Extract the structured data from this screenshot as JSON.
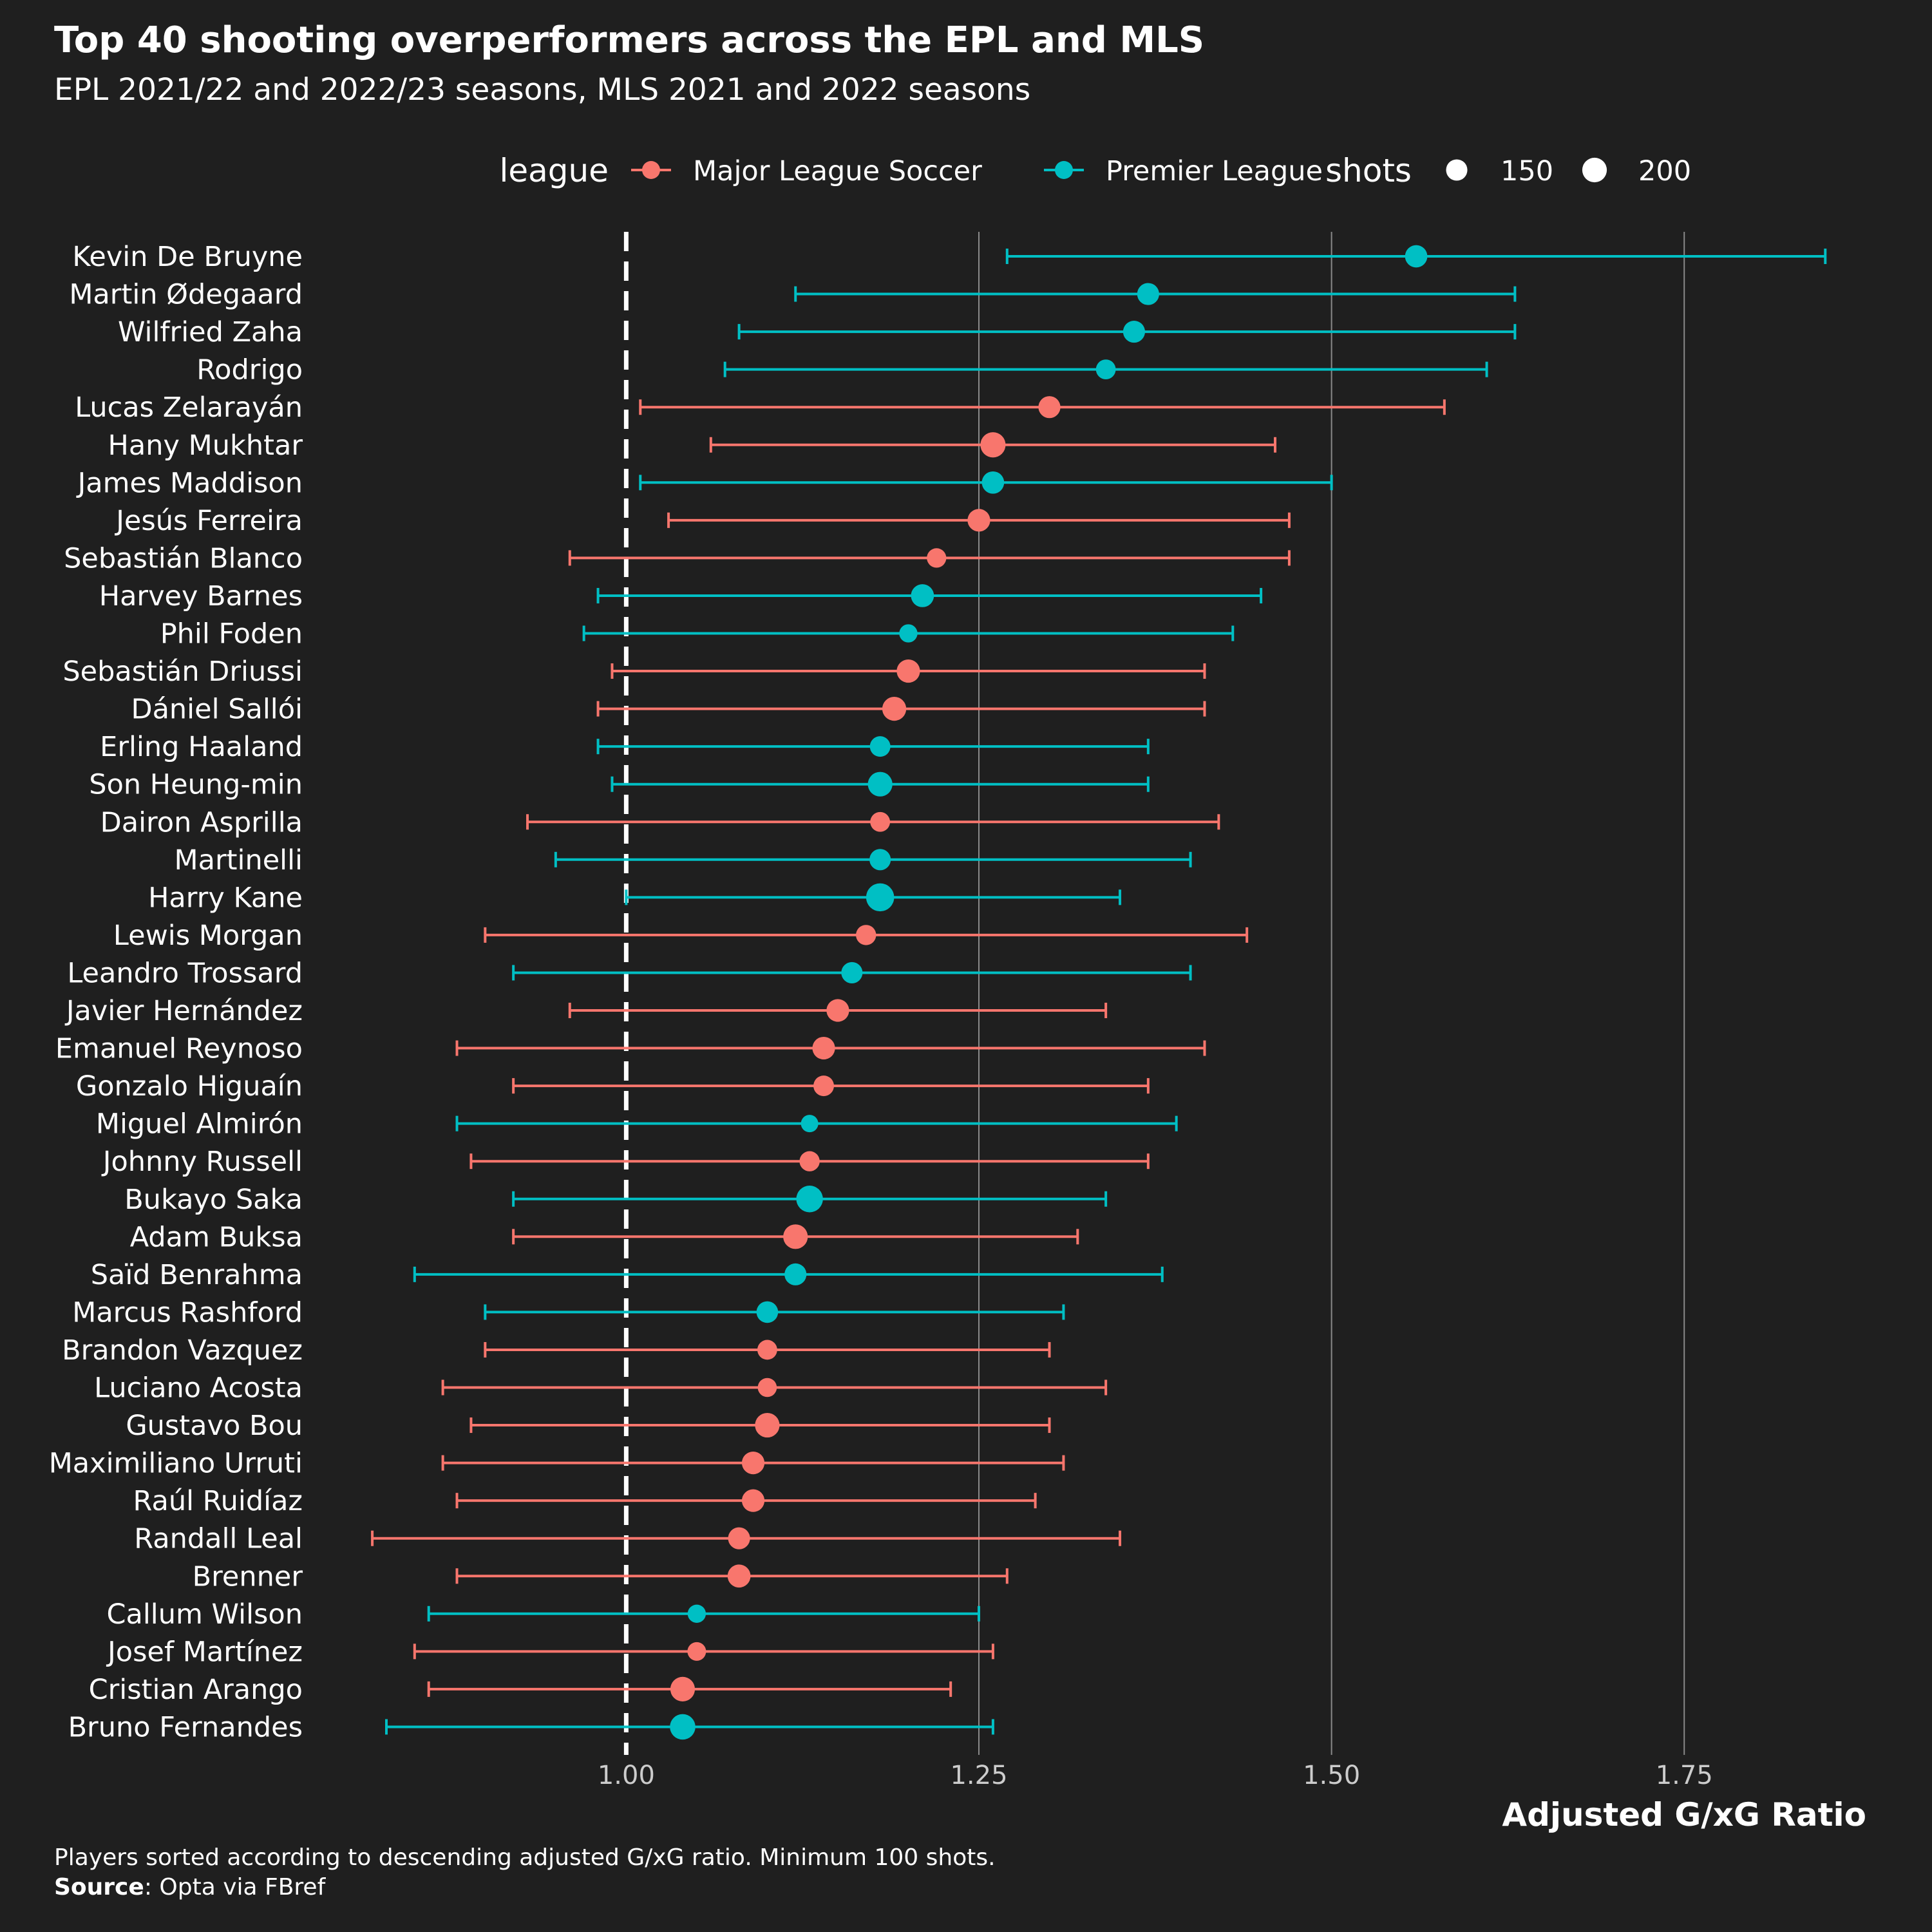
{
  "title": "Top 40 shooting overperformers across the EPL and MLS",
  "subtitle": "EPL 2021/22 and 2022/23 seasons, MLS 2021 and 2022 seasons",
  "caption": {
    "note": "Players sorted according to descending adjusted G/xG ratio. Minimum 100 shots.",
    "source_label": "Source",
    "source_text": ": Opta via FBref"
  },
  "colors": {
    "background": "#1f1f1f",
    "mls": "#f8766d",
    "epl": "#00bfc4",
    "grid": "#8a8a8a",
    "text": "#ffffff"
  },
  "chart_data": {
    "type": "dot-errorbar",
    "xlabel": "Adjusted G/xG Ratio",
    "xlim": [
      0.83,
      1.88
    ],
    "xticks": [
      1.0,
      1.25,
      1.5,
      1.75
    ],
    "xtick_labels": [
      "1.00",
      "1.25",
      "1.50",
      "1.75"
    ],
    "reference_line": 1.0,
    "legend": {
      "position": "top",
      "color_title": "league",
      "color_items": [
        {
          "key": "mls",
          "label": "Major League Soccer"
        },
        {
          "key": "epl",
          "label": "Premier League"
        }
      ],
      "size_title": "shots",
      "size_items": [
        150,
        200
      ]
    },
    "players": [
      {
        "name": "Kevin De Bruyne",
        "league": "epl",
        "value": 1.56,
        "low": 1.27,
        "high": 1.85,
        "shots": 165
      },
      {
        "name": "Martin Ødegaard",
        "league": "epl",
        "value": 1.37,
        "low": 1.12,
        "high": 1.63,
        "shots": 160
      },
      {
        "name": "Wilfried Zaha",
        "league": "epl",
        "value": 1.36,
        "low": 1.08,
        "high": 1.63,
        "shots": 160
      },
      {
        "name": "Rodrigo",
        "league": "epl",
        "value": 1.34,
        "low": 1.07,
        "high": 1.61,
        "shots": 130
      },
      {
        "name": "Lucas Zelarayán",
        "league": "mls",
        "value": 1.3,
        "low": 1.01,
        "high": 1.58,
        "shots": 160
      },
      {
        "name": "Hany Mukhtar",
        "league": "mls",
        "value": 1.26,
        "low": 1.06,
        "high": 1.46,
        "shots": 210
      },
      {
        "name": "James Maddison",
        "league": "epl",
        "value": 1.26,
        "low": 1.01,
        "high": 1.5,
        "shots": 165
      },
      {
        "name": "Jesús Ferreira",
        "league": "mls",
        "value": 1.25,
        "low": 1.03,
        "high": 1.47,
        "shots": 170
      },
      {
        "name": "Sebastián Blanco",
        "league": "mls",
        "value": 1.22,
        "low": 0.96,
        "high": 1.47,
        "shots": 125
      },
      {
        "name": "Harvey Barnes",
        "league": "epl",
        "value": 1.21,
        "low": 0.98,
        "high": 1.45,
        "shots": 175
      },
      {
        "name": "Phil Foden",
        "league": "epl",
        "value": 1.2,
        "low": 0.97,
        "high": 1.43,
        "shots": 110
      },
      {
        "name": "Sebastián Driussi",
        "league": "mls",
        "value": 1.2,
        "low": 0.99,
        "high": 1.41,
        "shots": 180
      },
      {
        "name": "Dániel Sallói",
        "league": "mls",
        "value": 1.19,
        "low": 0.98,
        "high": 1.41,
        "shots": 190
      },
      {
        "name": "Erling Haaland",
        "league": "epl",
        "value": 1.18,
        "low": 0.98,
        "high": 1.37,
        "shots": 140
      },
      {
        "name": "Son Heung-min",
        "league": "epl",
        "value": 1.18,
        "low": 0.99,
        "high": 1.37,
        "shots": 200
      },
      {
        "name": "Dairon Asprilla",
        "league": "mls",
        "value": 1.18,
        "low": 0.93,
        "high": 1.42,
        "shots": 130
      },
      {
        "name": "Martinelli",
        "league": "epl",
        "value": 1.18,
        "low": 0.95,
        "high": 1.4,
        "shots": 150
      },
      {
        "name": "Harry Kane",
        "league": "epl",
        "value": 1.18,
        "low": 1.0,
        "high": 1.35,
        "shots": 260
      },
      {
        "name": "Lewis Morgan",
        "league": "mls",
        "value": 1.17,
        "low": 0.9,
        "high": 1.44,
        "shots": 135
      },
      {
        "name": "Leandro Trossard",
        "league": "epl",
        "value": 1.16,
        "low": 0.92,
        "high": 1.4,
        "shots": 150
      },
      {
        "name": "Javier Hernández",
        "league": "mls",
        "value": 1.15,
        "low": 0.96,
        "high": 1.34,
        "shots": 170
      },
      {
        "name": "Emanuel Reynoso",
        "league": "mls",
        "value": 1.14,
        "low": 0.88,
        "high": 1.41,
        "shots": 170
      },
      {
        "name": "Gonzalo Higuaín",
        "league": "mls",
        "value": 1.14,
        "low": 0.92,
        "high": 1.37,
        "shots": 140
      },
      {
        "name": "Miguel Almirón",
        "league": "epl",
        "value": 1.13,
        "low": 0.88,
        "high": 1.39,
        "shots": 100
      },
      {
        "name": "Johnny Russell",
        "league": "mls",
        "value": 1.13,
        "low": 0.89,
        "high": 1.37,
        "shots": 135
      },
      {
        "name": "Bukayo Saka",
        "league": "epl",
        "value": 1.13,
        "low": 0.92,
        "high": 1.34,
        "shots": 235
      },
      {
        "name": "Adam Buksa",
        "league": "mls",
        "value": 1.12,
        "low": 0.92,
        "high": 1.32,
        "shots": 200
      },
      {
        "name": "Saïd Benrahma",
        "league": "epl",
        "value": 1.12,
        "low": 0.85,
        "high": 1.38,
        "shots": 160
      },
      {
        "name": "Marcus Rashford",
        "league": "epl",
        "value": 1.1,
        "low": 0.9,
        "high": 1.31,
        "shots": 155
      },
      {
        "name": "Brandon Vazquez",
        "league": "mls",
        "value": 1.1,
        "low": 0.9,
        "high": 1.3,
        "shots": 130
      },
      {
        "name": "Luciano Acosta",
        "league": "mls",
        "value": 1.1,
        "low": 0.87,
        "high": 1.34,
        "shots": 120
      },
      {
        "name": "Gustavo Bou",
        "league": "mls",
        "value": 1.1,
        "low": 0.89,
        "high": 1.3,
        "shots": 200
      },
      {
        "name": "Maximiliano Urruti",
        "league": "mls",
        "value": 1.09,
        "low": 0.87,
        "high": 1.31,
        "shots": 170
      },
      {
        "name": "Raúl Ruidíaz",
        "league": "mls",
        "value": 1.09,
        "low": 0.88,
        "high": 1.29,
        "shots": 170
      },
      {
        "name": "Randall Leal",
        "league": "mls",
        "value": 1.08,
        "low": 0.82,
        "high": 1.35,
        "shots": 160
      },
      {
        "name": "Brenner",
        "league": "mls",
        "value": 1.08,
        "low": 0.88,
        "high": 1.27,
        "shots": 175
      },
      {
        "name": "Callum Wilson",
        "league": "epl",
        "value": 1.05,
        "low": 0.86,
        "high": 1.25,
        "shots": 110
      },
      {
        "name": "Josef Martínez",
        "league": "mls",
        "value": 1.05,
        "low": 0.85,
        "high": 1.26,
        "shots": 115
      },
      {
        "name": "Cristian Arango",
        "league": "mls",
        "value": 1.04,
        "low": 0.86,
        "high": 1.23,
        "shots": 200
      },
      {
        "name": "Bruno Fernandes",
        "league": "epl",
        "value": 1.04,
        "low": 0.83,
        "high": 1.26,
        "shots": 215
      }
    ]
  }
}
